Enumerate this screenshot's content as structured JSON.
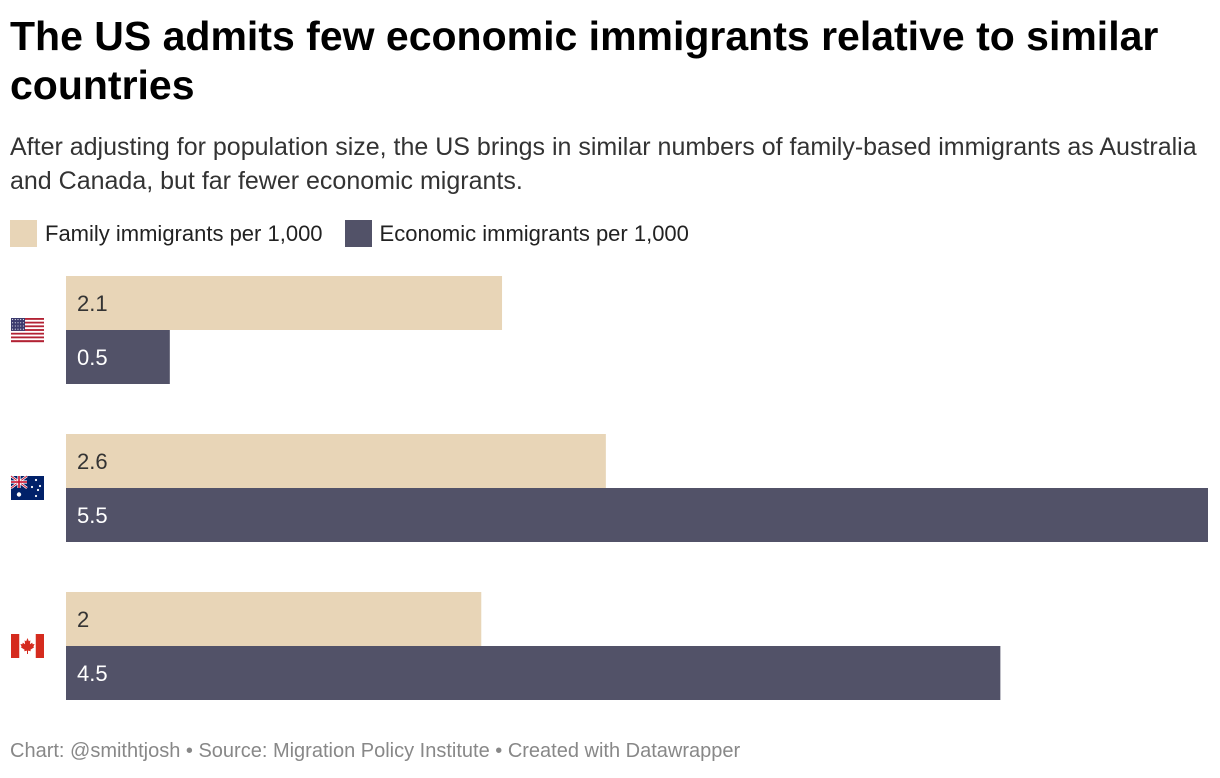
{
  "header": {
    "title": "The US admits few economic immigrants relative to similar countries",
    "subtitle": "After adjusting for population size, the US brings in similar numbers of family-based immigrants as Australia and Canada, but far fewer economic migrants."
  },
  "colors": {
    "family": "#e8d5b7",
    "economic": "#525268",
    "family_text": "#333333",
    "economic_text": "#ffffff"
  },
  "chart_data": {
    "type": "bar",
    "orientation": "horizontal",
    "title": "The US admits few economic immigrants relative to similar countries",
    "subtitle": "After adjusting for population size, the US brings in similar numbers of family-based immigrants as Australia and Canada, but far fewer economic migrants.",
    "categories": [
      "United States",
      "Australia",
      "Canada"
    ],
    "category_icons": [
      "us-flag-icon",
      "australia-flag-icon",
      "canada-flag-icon"
    ],
    "series": [
      {
        "name": "Family immigrants per 1,000",
        "values": [
          2.1,
          2.6,
          2
        ],
        "labels": [
          "2.1",
          "2.6",
          "2"
        ],
        "color": "#e8d5b7"
      },
      {
        "name": "Economic immigrants per 1,000",
        "values": [
          0.5,
          5.5,
          4.5
        ],
        "labels": [
          "0.5",
          "5.5",
          "4.5"
        ],
        "color": "#525268"
      }
    ],
    "xlim": [
      0,
      5.5
    ],
    "xlabel": "",
    "ylabel": "",
    "grid": false,
    "legend": "top-left"
  },
  "footer": {
    "text": "Chart: @smithtjosh • Source: Migration Policy Institute • Created with Datawrapper"
  }
}
